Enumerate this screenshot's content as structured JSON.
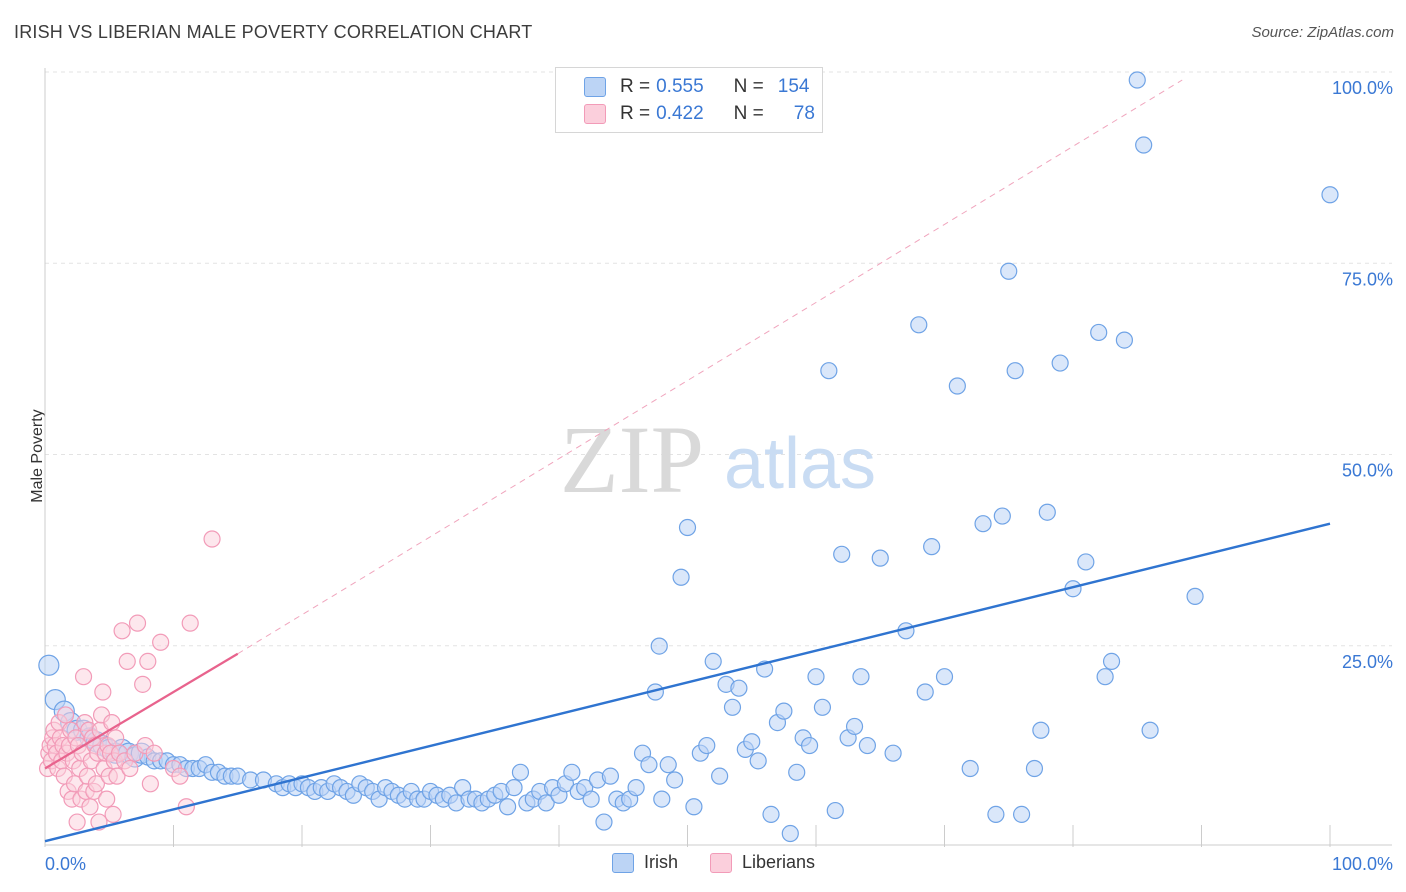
{
  "title": "IRISH VS LIBERIAN MALE POVERTY CORRELATION CHART",
  "source": "Source: ZipAtlas.com",
  "watermark": {
    "zip": "ZIP",
    "atlas": "atlas"
  },
  "legend": {
    "irish": {
      "r_label": "R =",
      "r_value": "0.555",
      "n_label": "N =",
      "n_value": "154"
    },
    "liberians": {
      "r_label": "R =",
      "r_value": "0.422",
      "n_label": "N =",
      "n_value": "78"
    }
  },
  "bottom_legend": {
    "irish": "Irish",
    "liberians": "Liberians"
  },
  "colors": {
    "irish": "#6fa3e6",
    "irish_line": "#2f74d0",
    "liberians": "#f29bb8",
    "liberians_line": "#e8638d"
  },
  "chart_data": {
    "type": "scatter",
    "title": "IRISH VS LIBERIAN MALE POVERTY CORRELATION CHART",
    "xlabel": "",
    "ylabel": "Male Poverty",
    "xlim": [
      0,
      100
    ],
    "ylim": [
      0,
      100
    ],
    "x_tick_labels": [
      "0.0%",
      "100.0%"
    ],
    "y_tick_labels": [
      "25.0%",
      "50.0%",
      "75.0%",
      "100.0%"
    ],
    "y_ticks": [
      25,
      50,
      75,
      100
    ],
    "grid": true,
    "legend_position": "top-center",
    "series": [
      {
        "name": "Irish",
        "trend": {
          "x": [
            0,
            100
          ],
          "y": [
            0.5,
            42
          ]
        },
        "points": [
          [
            0.3,
            23.5
          ],
          [
            0.8,
            19
          ],
          [
            1.5,
            17.5
          ],
          [
            2,
            16
          ],
          [
            2.5,
            15
          ],
          [
            3,
            15
          ],
          [
            3.5,
            14
          ],
          [
            4,
            13.5
          ],
          [
            4.5,
            13
          ],
          [
            5,
            12.5
          ],
          [
            5.5,
            12
          ],
          [
            6,
            12.5
          ],
          [
            6.5,
            12
          ],
          [
            7,
            11.5
          ],
          [
            7.5,
            12
          ],
          [
            8,
            11.5
          ],
          [
            8.5,
            11
          ],
          [
            9,
            11
          ],
          [
            9.5,
            11
          ],
          [
            10,
            10.5
          ],
          [
            10.5,
            10.5
          ],
          [
            11,
            10
          ],
          [
            11.5,
            10
          ],
          [
            12,
            10
          ],
          [
            12.5,
            10.5
          ],
          [
            13,
            9.5
          ],
          [
            13.5,
            9.5
          ],
          [
            14,
            9
          ],
          [
            14.5,
            9
          ],
          [
            15,
            9
          ],
          [
            16,
            8.5
          ],
          [
            17,
            8.5
          ],
          [
            18,
            8
          ],
          [
            18.5,
            7.5
          ],
          [
            19,
            8
          ],
          [
            19.5,
            7.5
          ],
          [
            20,
            8
          ],
          [
            20.5,
            7.5
          ],
          [
            21,
            7
          ],
          [
            21.5,
            7.5
          ],
          [
            22,
            7
          ],
          [
            22.5,
            8
          ],
          [
            23,
            7.5
          ],
          [
            23.5,
            7
          ],
          [
            24,
            6.5
          ],
          [
            24.5,
            8
          ],
          [
            25,
            7.5
          ],
          [
            25.5,
            7
          ],
          [
            26,
            6
          ],
          [
            26.5,
            7.5
          ],
          [
            27,
            7
          ],
          [
            27.5,
            6.5
          ],
          [
            28,
            6
          ],
          [
            28.5,
            7
          ],
          [
            29,
            6
          ],
          [
            29.5,
            6
          ],
          [
            30,
            7
          ],
          [
            30.5,
            6.5
          ],
          [
            31,
            6
          ],
          [
            31.5,
            6.5
          ],
          [
            32,
            5.5
          ],
          [
            32.5,
            7.5
          ],
          [
            33,
            6
          ],
          [
            33.5,
            6
          ],
          [
            34,
            5.5
          ],
          [
            34.5,
            6
          ],
          [
            35,
            6.5
          ],
          [
            35.5,
            7
          ],
          [
            36,
            5
          ],
          [
            36.5,
            7.5
          ],
          [
            37,
            9.5
          ],
          [
            37.5,
            5.5
          ],
          [
            38,
            6
          ],
          [
            38.5,
            7
          ],
          [
            39,
            5.5
          ],
          [
            39.5,
            7.5
          ],
          [
            40,
            6.5
          ],
          [
            40.5,
            8
          ],
          [
            41,
            9.5
          ],
          [
            41.5,
            7
          ],
          [
            42,
            7.5
          ],
          [
            42.5,
            6
          ],
          [
            43,
            8.5
          ],
          [
            43.5,
            3
          ],
          [
            44,
            9
          ],
          [
            44.5,
            6
          ],
          [
            45,
            5.5
          ],
          [
            45.5,
            6
          ],
          [
            46,
            7.5
          ],
          [
            46.5,
            12
          ],
          [
            47,
            10.5
          ],
          [
            47.5,
            20
          ],
          [
            47.8,
            26
          ],
          [
            48,
            6
          ],
          [
            48.5,
            10.5
          ],
          [
            49,
            8.5
          ],
          [
            49.5,
            35
          ],
          [
            50,
            41.5
          ],
          [
            50.5,
            5
          ],
          [
            51,
            12
          ],
          [
            51.5,
            13
          ],
          [
            52,
            24
          ],
          [
            52.5,
            9
          ],
          [
            53,
            21
          ],
          [
            53.5,
            18
          ],
          [
            54,
            20.5
          ],
          [
            54.5,
            12.5
          ],
          [
            55,
            13.5
          ],
          [
            55.5,
            11
          ],
          [
            56,
            23
          ],
          [
            56.5,
            4
          ],
          [
            57,
            16
          ],
          [
            57.5,
            17.5
          ],
          [
            58,
            1.5
          ],
          [
            58.5,
            9.5
          ],
          [
            59,
            14
          ],
          [
            59.5,
            13
          ],
          [
            60,
            22
          ],
          [
            60.5,
            18
          ],
          [
            61,
            62
          ],
          [
            61.5,
            4.5
          ],
          [
            62,
            38
          ],
          [
            62.5,
            14
          ],
          [
            63,
            15.5
          ],
          [
            63.5,
            22
          ],
          [
            64,
            13
          ],
          [
            65,
            37.5
          ],
          [
            66,
            12
          ],
          [
            67,
            28
          ],
          [
            68,
            68
          ],
          [
            68.5,
            20
          ],
          [
            69,
            39
          ],
          [
            70,
            22
          ],
          [
            71,
            60
          ],
          [
            72,
            10
          ],
          [
            73,
            42
          ],
          [
            74,
            4
          ],
          [
            74.5,
            43
          ],
          [
            75,
            75
          ],
          [
            75.5,
            62
          ],
          [
            76,
            4
          ],
          [
            77,
            10
          ],
          [
            77.5,
            15
          ],
          [
            78,
            43.5
          ],
          [
            79,
            63
          ],
          [
            80,
            33.5
          ],
          [
            81,
            37
          ],
          [
            82,
            67
          ],
          [
            82.5,
            22
          ],
          [
            83,
            24
          ],
          [
            84,
            66
          ],
          [
            85,
            100
          ],
          [
            85.5,
            91.5
          ],
          [
            86,
            15
          ],
          [
            89.5,
            32.5
          ],
          [
            100,
            85
          ]
        ]
      },
      {
        "name": "Liberians",
        "trend": {
          "x": [
            0,
            15
          ],
          "y": [
            10,
            25
          ]
        },
        "trend_extension": {
          "x": [
            15,
            88.5
          ],
          "y": [
            25,
            100
          ]
        },
        "points": [
          [
            0.2,
            10
          ],
          [
            0.3,
            12
          ],
          [
            0.4,
            13
          ],
          [
            0.5,
            11
          ],
          [
            0.6,
            14
          ],
          [
            0.7,
            15
          ],
          [
            0.8,
            13
          ],
          [
            0.9,
            12
          ],
          [
            1,
            10
          ],
          [
            1.1,
            16
          ],
          [
            1.2,
            14
          ],
          [
            1.3,
            11
          ],
          [
            1.4,
            13
          ],
          [
            1.5,
            9
          ],
          [
            1.6,
            17
          ],
          [
            1.7,
            12
          ],
          [
            1.8,
            7
          ],
          [
            1.9,
            13
          ],
          [
            2,
            15
          ],
          [
            2.1,
            6
          ],
          [
            2.2,
            11
          ],
          [
            2.3,
            8
          ],
          [
            2.4,
            14
          ],
          [
            2.5,
            3
          ],
          [
            2.6,
            13
          ],
          [
            2.7,
            10
          ],
          [
            2.8,
            6
          ],
          [
            2.9,
            12
          ],
          [
            3,
            22
          ],
          [
            3.1,
            16
          ],
          [
            3.2,
            7
          ],
          [
            3.3,
            9
          ],
          [
            3.4,
            15
          ],
          [
            3.5,
            5
          ],
          [
            3.6,
            11
          ],
          [
            3.7,
            14
          ],
          [
            3.8,
            7
          ],
          [
            3.9,
            13
          ],
          [
            4,
            8
          ],
          [
            4.1,
            12
          ],
          [
            4.2,
            3
          ],
          [
            4.3,
            15
          ],
          [
            4.4,
            17
          ],
          [
            4.5,
            20
          ],
          [
            4.6,
            10
          ],
          [
            4.7,
            12
          ],
          [
            4.8,
            6
          ],
          [
            4.9,
            13
          ],
          [
            5,
            9
          ],
          [
            5.1,
            12
          ],
          [
            5.2,
            16
          ],
          [
            5.3,
            4
          ],
          [
            5.4,
            11
          ],
          [
            5.5,
            14
          ],
          [
            5.6,
            9
          ],
          [
            5.8,
            12
          ],
          [
            6,
            28
          ],
          [
            6.2,
            11
          ],
          [
            6.4,
            24
          ],
          [
            6.6,
            10
          ],
          [
            7,
            12
          ],
          [
            7.2,
            29
          ],
          [
            7.6,
            21
          ],
          [
            7.8,
            13
          ],
          [
            8,
            24
          ],
          [
            8.2,
            8
          ],
          [
            8.5,
            12
          ],
          [
            9,
            26.5
          ],
          [
            10,
            10
          ],
          [
            10.5,
            9
          ],
          [
            11,
            5
          ],
          [
            11.3,
            29
          ],
          [
            13,
            40
          ]
        ]
      }
    ]
  }
}
